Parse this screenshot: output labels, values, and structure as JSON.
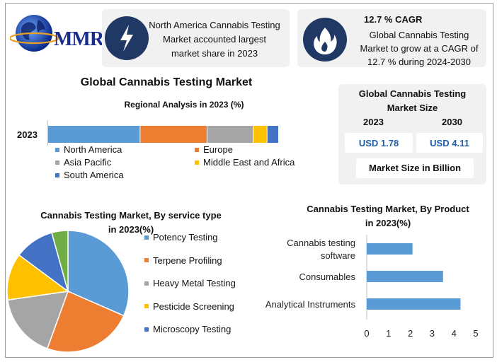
{
  "logo": {
    "text": "MMR"
  },
  "card1": {
    "text_lines": [
      "North America Cannabis Testing",
      "Market accounted largest",
      "market share in 2023"
    ],
    "icon": "lightning-icon"
  },
  "card2": {
    "headline": "12.7 % CAGR",
    "text_lines": [
      "Global Cannabis Testing",
      "Market to grow at a CAGR of",
      "12.7 % during 2024-2030"
    ],
    "icon": "flame-icon"
  },
  "main_title": "Global Cannabis Testing Market",
  "market_size": {
    "title_lines": [
      "Global Cannabis Testing",
      "Market Size"
    ],
    "year1": "2023",
    "year2": "2030",
    "value1": "USD 1.78",
    "value2": "USD 4.11",
    "note": "Market Size in Billion",
    "value_color": "#1f5fa8"
  },
  "chart_data": [
    {
      "type": "bar",
      "orientation": "horizontal-stacked",
      "title": "Regional Analysis in 2023 (%)",
      "categories": [
        "2023"
      ],
      "xlim": [
        0,
        100
      ],
      "series": [
        {
          "name": "North America",
          "values": [
            40
          ],
          "color": "#5b9bd5"
        },
        {
          "name": "Europe",
          "values": [
            29
          ],
          "color": "#ed7d31"
        },
        {
          "name": "Asia Pacific",
          "values": [
            20
          ],
          "color": "#a5a5a5"
        },
        {
          "name": "Middle East and Africa",
          "values": [
            6
          ],
          "color": "#ffc000"
        },
        {
          "name": "South America",
          "values": [
            5
          ],
          "color": "#4472c4"
        }
      ],
      "legend_position": "bottom"
    },
    {
      "type": "pie",
      "title_lines": [
        "Cannabis Testing Market, By service type",
        "in 2023(%)"
      ],
      "categories": [
        "Potency Testing",
        "Terpene Profiling",
        "Heavy Metal Testing",
        "Pesticide Screening",
        "Microscopy Testing"
      ],
      "values": [
        33,
        25,
        18,
        13,
        11
      ],
      "extra_slice": {
        "value": 4.5,
        "color": "#70ad47"
      },
      "colors": [
        "#5b9bd5",
        "#ed7d31",
        "#a5a5a5",
        "#ffc000",
        "#4472c4"
      ],
      "legend_position": "right"
    },
    {
      "type": "bar",
      "orientation": "horizontal",
      "title_lines": [
        "Cannabis Testing Market, By Product",
        "in 2023(%)"
      ],
      "categories": [
        [
          "Cannabis testing",
          "software"
        ],
        [
          "Consumables"
        ],
        [
          "Analytical Instruments"
        ]
      ],
      "values": [
        2.1,
        3.5,
        4.3
      ],
      "xlim": [
        0,
        5
      ],
      "xticks": [
        "0",
        "1",
        "2",
        "3",
        "4",
        "5"
      ],
      "color": "#5b9bd5",
      "grid": false
    }
  ]
}
